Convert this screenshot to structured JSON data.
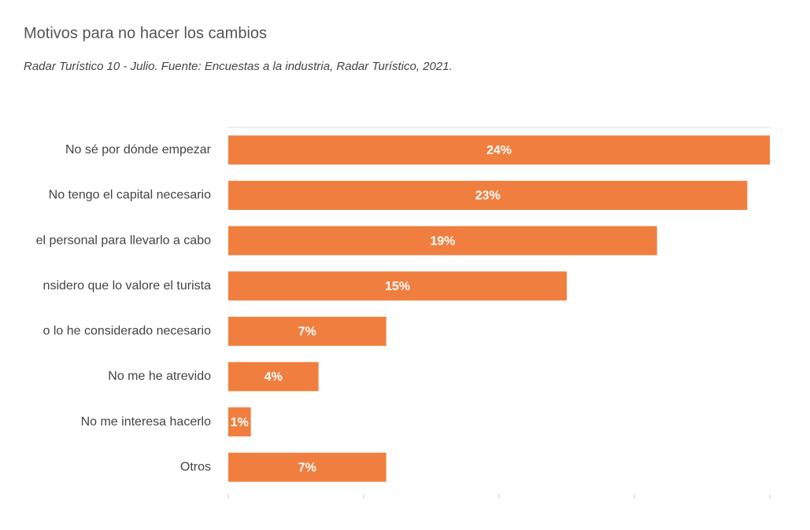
{
  "chart_data": {
    "type": "bar",
    "orientation": "horizontal",
    "title": "Motivos para no hacer los cambios",
    "subtitle": "Radar Turístico 10 - Julio. Fuente: Encuestas a la industria, Radar Turístico, 2021.",
    "categories": [
      "No sé por dónde empezar",
      "No tengo el capital necesario",
      "el personal para llevarlo a cabo",
      "nsidero que lo valore el turista",
      "o lo he considerado necesario",
      "No me he atrevido",
      "No me interesa hacerlo",
      "Otros"
    ],
    "values": [
      24,
      23,
      19,
      15,
      7,
      4,
      1,
      7
    ],
    "value_labels": [
      "24%",
      "23%",
      "19%",
      "15%",
      "7%",
      "4%",
      "1%",
      "7%"
    ],
    "color": "#f07f3f",
    "xlim": [
      0,
      24
    ],
    "xticks": [
      0,
      6,
      12,
      18,
      24
    ]
  }
}
